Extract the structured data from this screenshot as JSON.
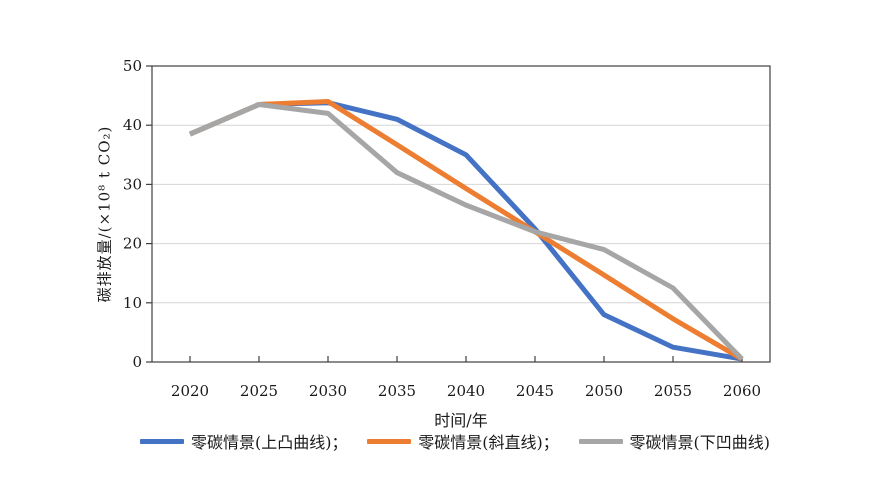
{
  "page": {
    "background": "#ffffff"
  },
  "chart_data": {
    "type": "line",
    "title": "",
    "xlabel": "时间/年",
    "ylabel": "碳排放量/(×10⁸ t CO₂)",
    "x": [
      2020,
      2025,
      2030,
      2035,
      2040,
      2045,
      2050,
      2055,
      2060
    ],
    "xticks": [
      "2020",
      "2025",
      "2030",
      "2035",
      "2040",
      "2045",
      "2050",
      "2055",
      "2060"
    ],
    "ylim": [
      0,
      50
    ],
    "yticks": [
      0,
      10,
      20,
      30,
      40,
      50
    ],
    "grid": true,
    "legend_position": "bottom",
    "series": [
      {
        "name": "零碳情景(上凸曲线)",
        "color": "#4472C4",
        "values": [
          38.5,
          43.5,
          43.8,
          41,
          35,
          22.5,
          8,
          2.5,
          0.5
        ]
      },
      {
        "name": "零碳情景(斜直线)",
        "color": "#ED7D31",
        "values": [
          38.5,
          43.5,
          44,
          36.7,
          29.3,
          22,
          14.7,
          7.3,
          0.5
        ]
      },
      {
        "name": "零碳情景(下凹曲线)",
        "color": "#A6A6A6",
        "values": [
          38.5,
          43.5,
          42,
          32,
          26.5,
          22,
          19,
          12.5,
          0.5
        ]
      }
    ]
  },
  "legend": {
    "items": [
      {
        "label": "零碳情景(上凸曲线)；"
      },
      {
        "label": "零碳情景(斜直线)；"
      },
      {
        "label": "零碳情景(下凹曲线)"
      }
    ]
  },
  "axis": {
    "line_color": "#3f3f3f",
    "grid_color": "#d6d6d6",
    "text_color": "#1a1a1a"
  }
}
